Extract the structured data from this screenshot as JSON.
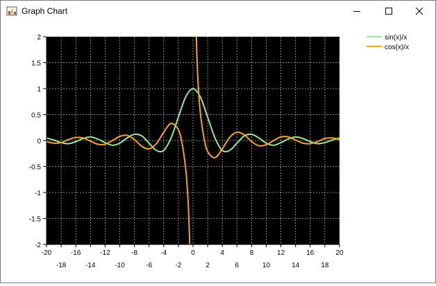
{
  "window": {
    "title": "Graph Chart"
  },
  "chart_data": {
    "type": "line",
    "title": "",
    "xlabel": "",
    "ylabel": "",
    "xlim": [
      -20,
      20
    ],
    "ylim": [
      -2,
      2
    ],
    "grid": true,
    "legend_position": "top-right",
    "plot_background": "#000000",
    "x_ticks_upper": [
      "-20",
      "-16",
      "-12",
      "-8",
      "-4",
      "0",
      "4",
      "8",
      "12",
      "16",
      "20"
    ],
    "x_ticks_lower": [
      "-18",
      "-14",
      "-10",
      "-6",
      "-2",
      "2",
      "6",
      "10",
      "14",
      "18"
    ],
    "y_ticks": [
      "2",
      "1.5",
      "1",
      "0.5",
      "0",
      "-0.5",
      "-1",
      "-1.5",
      "-2"
    ],
    "series": [
      {
        "name": "sin(x)/x",
        "color": "#90ee90",
        "x": [
          -20,
          -19,
          -18,
          -17,
          -16,
          -15,
          -14,
          -13,
          -12,
          -11,
          -10,
          -9,
          -8,
          -7,
          -6,
          -5,
          -4,
          -3,
          -2,
          -1,
          0,
          1,
          2,
          3,
          4,
          5,
          6,
          7,
          8,
          9,
          10,
          11,
          12,
          13,
          14,
          15,
          16,
          17,
          18,
          19,
          20
        ],
        "y": [
          0.05,
          0.01,
          -0.04,
          -0.06,
          -0.02,
          0.04,
          0.07,
          0.03,
          -0.04,
          -0.09,
          -0.05,
          0.05,
          0.12,
          0.09,
          -0.05,
          -0.19,
          -0.19,
          0.05,
          0.45,
          0.84,
          1.0,
          0.84,
          0.45,
          0.05,
          -0.19,
          -0.19,
          -0.05,
          0.09,
          0.12,
          0.05,
          -0.05,
          -0.09,
          -0.04,
          0.03,
          0.07,
          0.04,
          -0.02,
          -0.06,
          -0.04,
          0.01,
          0.05
        ]
      },
      {
        "name": "cos(x)/x",
        "color": "#ffa500",
        "x": [
          -20,
          -19,
          -18,
          -17,
          -16,
          -15,
          -14,
          -13,
          -12,
          -11,
          -10,
          -9,
          -8,
          -7,
          -6,
          -5,
          -4,
          -3,
          -2,
          -1.5,
          -1,
          -0.7,
          -0.5,
          -0.4,
          0.4,
          0.5,
          0.7,
          1,
          1.5,
          2,
          3,
          4,
          5,
          6,
          7,
          8,
          9,
          10,
          11,
          12,
          13,
          14,
          15,
          16,
          17,
          18,
          19,
          20
        ],
        "y": [
          -0.02,
          -0.05,
          -0.04,
          0.02,
          0.06,
          0.05,
          -0.01,
          -0.07,
          -0.07,
          0.0,
          0.08,
          0.1,
          0.02,
          -0.11,
          -0.16,
          -0.06,
          0.16,
          0.33,
          0.21,
          -0.05,
          -0.54,
          -1.09,
          -1.76,
          -2.3,
          2.3,
          1.76,
          1.09,
          0.54,
          0.05,
          -0.21,
          -0.33,
          -0.16,
          0.06,
          0.16,
          0.11,
          -0.02,
          -0.1,
          -0.08,
          0.0,
          0.07,
          0.07,
          0.01,
          -0.05,
          -0.06,
          -0.02,
          0.04,
          0.05,
          0.02
        ]
      }
    ]
  }
}
